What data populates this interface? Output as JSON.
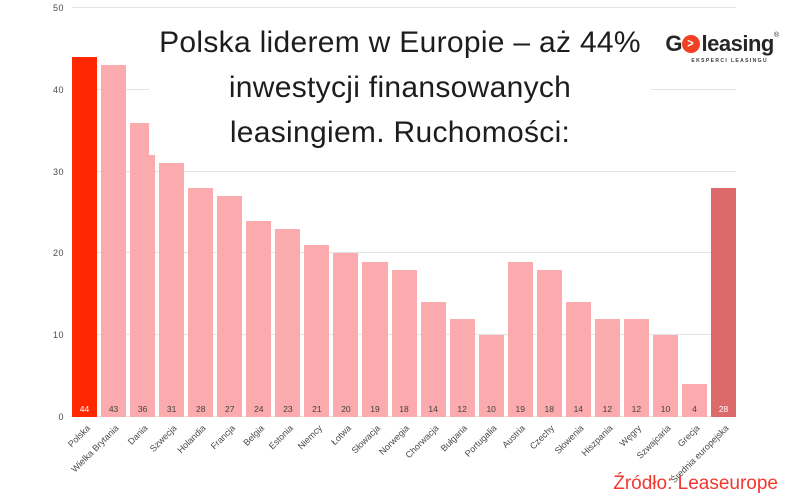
{
  "title": {
    "lines": [
      "Polska liderem w Europie – aż 44%",
      "inwestycji finansowanych",
      "leasingiem. Ruchomości:"
    ]
  },
  "logo": {
    "g": "G",
    "arrow": ">",
    "word": "leasing",
    "registered": "®",
    "tagline": "EKSPERCI LEASINGU"
  },
  "source": "Źródło: Leaseurope",
  "chart_data": {
    "type": "bar",
    "categories": [
      "Polska",
      "Wielka Brytania",
      "Dania",
      "Szwecja",
      "Holandia",
      "Francja",
      "Belgia",
      "Estonia",
      "Niemcy",
      "Łotwa",
      "Słowacja",
      "Norwegia",
      "Chorwacja",
      "Bułgaria",
      "Portugalia",
      "Austria",
      "Czechy",
      "Słowenia",
      "Hiszpania",
      "Węgry",
      "Szwajcaria",
      "Grecja",
      "Średnia europejska"
    ],
    "values": [
      44,
      43,
      36,
      31,
      28,
      27,
      24,
      23,
      21,
      20,
      19,
      18,
      14,
      12,
      10,
      19,
      18,
      14,
      12,
      12,
      10,
      4,
      28
    ],
    "title": "Polska liderem w Europie – aż 44% inwestycji finansowanych leasingiem. Ruchomości:",
    "xlabel": "",
    "ylabel": "",
    "ylim": [
      0,
      50
    ],
    "yticks": [
      0,
      10,
      20,
      30,
      40,
      50
    ],
    "grid": true,
    "legend": "none",
    "value_labels": "inside-bottom",
    "highlight_index": 0,
    "average_index": 22,
    "colors": {
      "highlight": "#ff2600",
      "default": "#fbaaad",
      "average": "#dc6a6a",
      "value_text_dark": "#414141",
      "value_text_light": "#ffffff",
      "gridline": "#e4e4e4",
      "axis_text": "#4a4a4a"
    }
  },
  "colors": {
    "background": "#ffffff",
    "title_text": "#1d1d1d",
    "source_text": "#f2372e",
    "logo_accent": "#ef4123",
    "logo_text": "#262626"
  }
}
